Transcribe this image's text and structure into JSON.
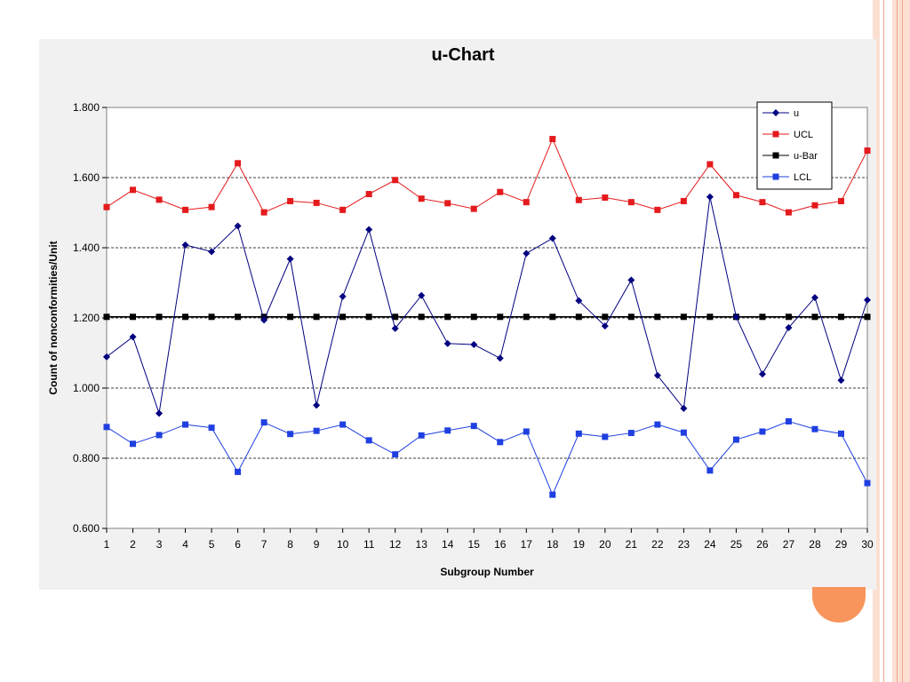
{
  "chart_data": {
    "type": "line",
    "title": "u-Chart",
    "xlabel": "Subgroup Number",
    "ylabel": "Count of nonconformities/Unit",
    "ylim": [
      0.6,
      1.8
    ],
    "yticks": [
      "0.600",
      "0.800",
      "1.000",
      "1.200",
      "1.400",
      "1.600",
      "1.800"
    ],
    "grid": "horizontal dashed",
    "legend_position": "top-right",
    "x": [
      1,
      2,
      3,
      4,
      5,
      6,
      7,
      8,
      9,
      10,
      11,
      12,
      13,
      14,
      15,
      16,
      17,
      18,
      19,
      20,
      21,
      22,
      23,
      24,
      25,
      26,
      27,
      28,
      29,
      30
    ],
    "series": [
      {
        "name": "u",
        "color": "#000080",
        "marker": "diamond",
        "values": [
          1.089,
          1.146,
          0.928,
          1.408,
          1.389,
          1.462,
          1.194,
          1.368,
          0.951,
          1.261,
          1.452,
          1.17,
          1.264,
          1.127,
          1.124,
          1.085,
          1.384,
          1.427,
          1.249,
          1.177,
          1.308,
          1.036,
          0.942,
          1.545,
          1.203,
          1.04,
          1.172,
          1.258,
          1.022,
          1.251
        ]
      },
      {
        "name": "UCL",
        "color": "#e41a1c",
        "marker": "square",
        "values": [
          1.516,
          1.565,
          1.537,
          1.508,
          1.516,
          1.641,
          1.501,
          1.533,
          1.528,
          1.508,
          1.553,
          1.593,
          1.54,
          1.527,
          1.511,
          1.559,
          1.53,
          1.71,
          1.536,
          1.543,
          1.53,
          1.508,
          1.533,
          1.638,
          1.55,
          1.53,
          1.501,
          1.521,
          1.533,
          1.677
        ]
      },
      {
        "name": "u-Bar",
        "color": "#000000",
        "marker": "square",
        "values": [
          1.203,
          1.203,
          1.203,
          1.203,
          1.203,
          1.203,
          1.203,
          1.203,
          1.203,
          1.203,
          1.203,
          1.203,
          1.203,
          1.203,
          1.203,
          1.203,
          1.203,
          1.203,
          1.203,
          1.203,
          1.203,
          1.203,
          1.203,
          1.203,
          1.203,
          1.203,
          1.203,
          1.203,
          1.203,
          1.203
        ]
      },
      {
        "name": "LCL",
        "color": "#1f3fe0",
        "marker": "square",
        "values": [
          0.889,
          0.841,
          0.866,
          0.896,
          0.887,
          0.761,
          0.902,
          0.869,
          0.878,
          0.896,
          0.851,
          0.811,
          0.865,
          0.879,
          0.892,
          0.846,
          0.876,
          0.696,
          0.87,
          0.861,
          0.872,
          0.896,
          0.873,
          0.765,
          0.853,
          0.876,
          0.905,
          0.883,
          0.87,
          0.729
        ]
      }
    ]
  }
}
